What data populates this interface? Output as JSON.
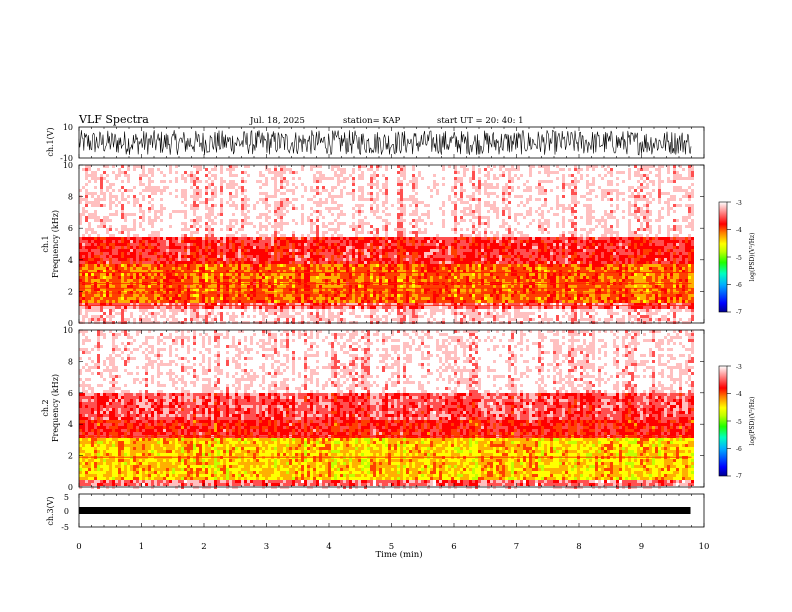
{
  "header": {
    "title": "VLF Spectra",
    "date": "Jul. 18, 2025",
    "station": "station= KAP",
    "start_ut": "start UT =  20: 40: 1"
  },
  "chart_data": [
    {
      "type": "line",
      "name": "ch1-waveform",
      "ylabel": "ch.1(V)",
      "ylim": [
        -10,
        10
      ],
      "yticks": [
        "10",
        "-10"
      ],
      "xlim": [
        0,
        10
      ],
      "description_values": {
        "typical_range_V": [
          -8,
          8
        ],
        "mean_V": -1
      }
    },
    {
      "type": "heatmap",
      "name": "ch1-spectrogram",
      "ylabel_line1": "ch.1",
      "ylabel_line2": "Frequency (kHz)",
      "ylim": [
        0,
        10
      ],
      "yticks": [
        "0",
        "2",
        "4",
        "6",
        "8",
        "10"
      ],
      "xlim": [
        0,
        10
      ],
      "data_extent_min": [
        0,
        9.8
      ],
      "band_levels": [
        {
          "freq_khz": [
            0.0,
            0.9
          ],
          "level": -3.2
        },
        {
          "freq_khz": [
            0.9,
            1.2
          ],
          "level": -3.6
        },
        {
          "freq_khz": [
            1.2,
            3.8
          ],
          "level": -4.4
        },
        {
          "freq_khz": [
            3.8,
            5.5
          ],
          "level": -3.9
        },
        {
          "freq_khz": [
            5.5,
            10.0
          ],
          "level": -3.1
        }
      ],
      "lines_khz": [
        1.1,
        1.9,
        2.2,
        2.5,
        3.2
      ],
      "colorbar": {
        "label": "log(PSD)(V²/Hz)",
        "range": [
          -7,
          -3
        ],
        "ticks": [
          "-3",
          "-4",
          "-5",
          "-6",
          "-7"
        ]
      }
    },
    {
      "type": "heatmap",
      "name": "ch2-spectrogram",
      "ylabel_line1": "ch.2",
      "ylabel_line2": "Frequency (kHz)",
      "ylim": [
        0,
        10
      ],
      "yticks": [
        "0",
        "2",
        "4",
        "6",
        "8",
        "10"
      ],
      "xlim": [
        0,
        10
      ],
      "data_extent_min": [
        0,
        9.8
      ],
      "band_levels": [
        {
          "freq_khz": [
            0.0,
            0.4
          ],
          "level": -3.6
        },
        {
          "freq_khz": [
            0.4,
            3.2
          ],
          "level": -4.8
        },
        {
          "freq_khz": [
            3.2,
            4.2
          ],
          "level": -4.0
        },
        {
          "freq_khz": [
            4.2,
            6.0
          ],
          "level": -3.7
        },
        {
          "freq_khz": [
            6.0,
            10.0
          ],
          "level": -3.1
        }
      ],
      "lines_khz": [
        1.9,
        3.2
      ],
      "colorbar": {
        "label": "log(PSD)(V²/Hz)",
        "range": [
          -7,
          -3
        ],
        "ticks": [
          "-3",
          "-4",
          "-5",
          "-6",
          "-7"
        ]
      }
    },
    {
      "type": "line",
      "name": "ch3-waveform",
      "ylabel": "ch.3(V)",
      "ylim": [
        -5,
        5
      ],
      "yticks": [
        "5",
        "0",
        "-5"
      ],
      "xlim": [
        0,
        10
      ],
      "description_values": {
        "typical_range_V": [
          -0.8,
          0.2
        ]
      }
    }
  ],
  "xaxis": {
    "label": "Time (min)",
    "ticks": [
      "0",
      "1",
      "2",
      "3",
      "4",
      "5",
      "6",
      "7",
      "8",
      "9",
      "10"
    ]
  },
  "colors": {
    "colormap": [
      "#000090",
      "#0000ff",
      "#00a0ff",
      "#00ffb0",
      "#10ff00",
      "#c0ff00",
      "#ffff00",
      "#ffb000",
      "#ff4000",
      "#ff0000",
      "#ff5050",
      "#ffc0c0",
      "#ffffff"
    ],
    "waveform": "#000000"
  }
}
